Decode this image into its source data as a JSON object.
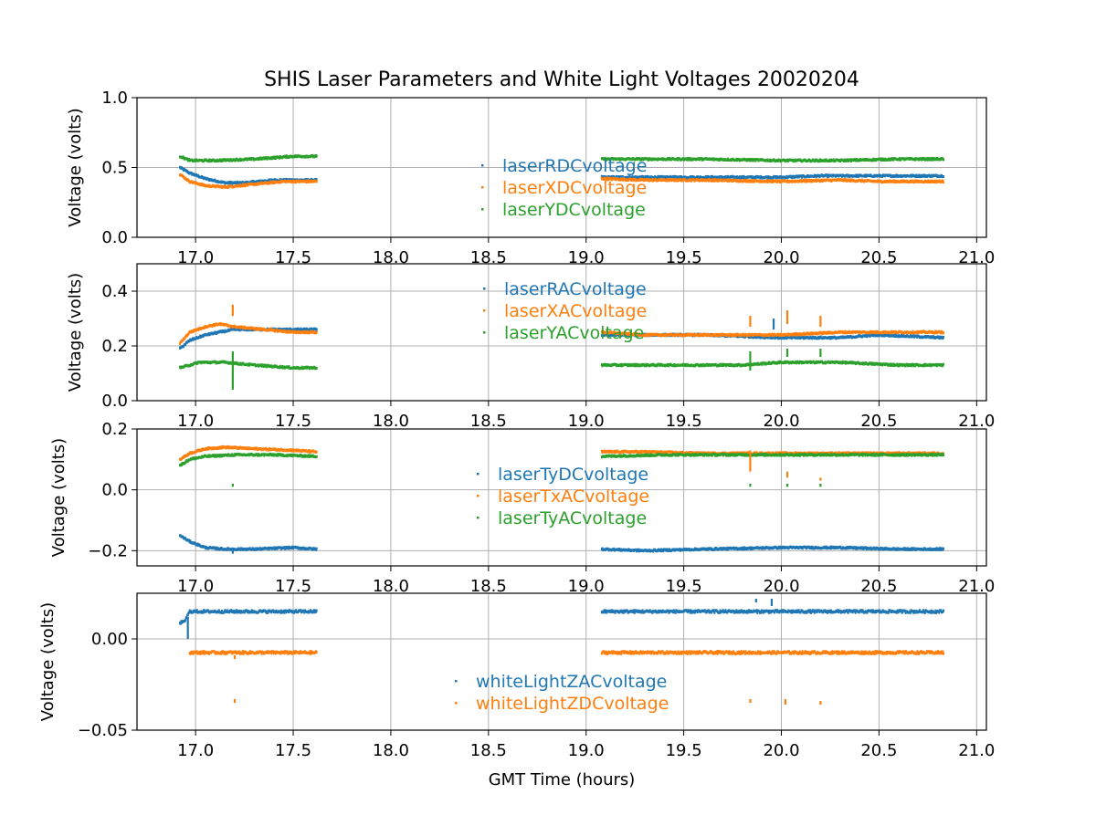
{
  "chart_data": {
    "type": "scatter",
    "title": "SHIS Laser Parameters and White Light Voltages 20020204",
    "xlabel": "GMT Time (hours)",
    "xlim": [
      16.7,
      21.05
    ],
    "x_ticks": [
      17.0,
      17.5,
      18.0,
      18.5,
      19.0,
      19.5,
      20.0,
      20.5,
      21.0
    ],
    "x_tick_labels": [
      "17.0",
      "17.5",
      "18.0",
      "18.5",
      "19.0",
      "19.5",
      "20.0",
      "20.5",
      "21.0"
    ],
    "segments": [
      [
        16.92,
        17.62
      ],
      [
        19.08,
        20.83
      ]
    ],
    "colors": {
      "blue": "#1f77b4",
      "orange": "#ff7f0e",
      "green": "#2ca02c"
    },
    "panels": [
      {
        "ylabel": "Voltage (volts)",
        "ylim": [
          0.0,
          1.0
        ],
        "y_ticks": [
          0.0,
          0.5,
          1.0
        ],
        "y_tick_labels": [
          "0.0",
          "0.5",
          "1.0"
        ],
        "series": [
          {
            "name": "laserRDCvoltage",
            "color": "#1f77b4",
            "points": [
              [
                16.92,
                0.5
              ],
              [
                16.97,
                0.46
              ],
              [
                17.05,
                0.42
              ],
              [
                17.15,
                0.39
              ],
              [
                17.25,
                0.39
              ],
              [
                17.4,
                0.41
              ],
              [
                17.62,
                0.41
              ],
              [
                19.08,
                0.43
              ],
              [
                19.3,
                0.43
              ],
              [
                19.6,
                0.43
              ],
              [
                20.0,
                0.43
              ],
              [
                20.2,
                0.44
              ],
              [
                20.5,
                0.44
              ],
              [
                20.83,
                0.44
              ]
            ]
          },
          {
            "name": "laserXDCvoltage",
            "color": "#ff7f0e",
            "points": [
              [
                16.92,
                0.45
              ],
              [
                16.97,
                0.4
              ],
              [
                17.05,
                0.37
              ],
              [
                17.15,
                0.36
              ],
              [
                17.3,
                0.38
              ],
              [
                17.45,
                0.4
              ],
              [
                17.62,
                0.4
              ],
              [
                19.08,
                0.42
              ],
              [
                19.3,
                0.41
              ],
              [
                19.6,
                0.41
              ],
              [
                20.0,
                0.4
              ],
              [
                20.3,
                0.41
              ],
              [
                20.5,
                0.4
              ],
              [
                20.83,
                0.4
              ]
            ]
          },
          {
            "name": "laserYDCvoltage",
            "color": "#2ca02c",
            "points": [
              [
                16.92,
                0.58
              ],
              [
                16.97,
                0.55
              ],
              [
                17.1,
                0.55
              ],
              [
                17.3,
                0.56
              ],
              [
                17.5,
                0.58
              ],
              [
                17.62,
                0.58
              ],
              [
                19.08,
                0.56
              ],
              [
                19.3,
                0.56
              ],
              [
                19.6,
                0.56
              ],
              [
                20.0,
                0.55
              ],
              [
                20.3,
                0.55
              ],
              [
                20.6,
                0.56
              ],
              [
                20.83,
                0.56
              ]
            ]
          }
        ],
        "outliers": []
      },
      {
        "ylabel": "Voltage (volts)",
        "ylim": [
          0.0,
          0.5
        ],
        "y_ticks": [
          0.0,
          0.2,
          0.4
        ],
        "y_tick_labels": [
          "0.0",
          "0.2",
          "0.4"
        ],
        "series": [
          {
            "name": "laserRACvoltage",
            "color": "#1f77b4",
            "points": [
              [
                16.92,
                0.19
              ],
              [
                16.97,
                0.22
              ],
              [
                17.05,
                0.24
              ],
              [
                17.12,
                0.25
              ],
              [
                17.2,
                0.26
              ],
              [
                17.35,
                0.26
              ],
              [
                17.5,
                0.26
              ],
              [
                17.62,
                0.26
              ],
              [
                19.08,
                0.24
              ],
              [
                19.3,
                0.24
              ],
              [
                19.6,
                0.24
              ],
              [
                20.0,
                0.23
              ],
              [
                20.3,
                0.23
              ],
              [
                20.5,
                0.24
              ],
              [
                20.83,
                0.23
              ]
            ]
          },
          {
            "name": "laserXACvoltage",
            "color": "#ff7f0e",
            "points": [
              [
                16.92,
                0.21
              ],
              [
                16.97,
                0.25
              ],
              [
                17.05,
                0.27
              ],
              [
                17.12,
                0.28
              ],
              [
                17.2,
                0.27
              ],
              [
                17.35,
                0.26
              ],
              [
                17.5,
                0.25
              ],
              [
                17.62,
                0.25
              ],
              [
                19.08,
                0.25
              ],
              [
                19.3,
                0.24
              ],
              [
                19.6,
                0.24
              ],
              [
                20.0,
                0.24
              ],
              [
                20.3,
                0.25
              ],
              [
                20.5,
                0.25
              ],
              [
                20.83,
                0.25
              ]
            ]
          },
          {
            "name": "laserYACvoltage",
            "color": "#2ca02c",
            "points": [
              [
                16.92,
                0.12
              ],
              [
                16.97,
                0.13
              ],
              [
                17.02,
                0.14
              ],
              [
                17.15,
                0.14
              ],
              [
                17.3,
                0.13
              ],
              [
                17.5,
                0.12
              ],
              [
                17.62,
                0.12
              ],
              [
                19.08,
                0.13
              ],
              [
                19.5,
                0.13
              ],
              [
                19.8,
                0.13
              ],
              [
                20.0,
                0.14
              ],
              [
                20.3,
                0.14
              ],
              [
                20.6,
                0.13
              ],
              [
                20.83,
                0.13
              ]
            ]
          }
        ],
        "outliers": [
          {
            "color": "#ff7f0e",
            "x": 17.19,
            "y": [
              0.31,
              0.35
            ]
          },
          {
            "color": "#2ca02c",
            "x": 17.19,
            "y": [
              0.04,
              0.18
            ]
          },
          {
            "color": "#ff7f0e",
            "x": 19.84,
            "y": [
              0.27,
              0.31
            ]
          },
          {
            "color": "#2ca02c",
            "x": 19.84,
            "y": [
              0.11,
              0.18
            ]
          },
          {
            "color": "#1f77b4",
            "x": 19.96,
            "y": [
              0.26,
              0.3
            ]
          },
          {
            "color": "#ff7f0e",
            "x": 20.03,
            "y": [
              0.28,
              0.33
            ]
          },
          {
            "color": "#2ca02c",
            "x": 20.03,
            "y": [
              0.16,
              0.19
            ]
          },
          {
            "color": "#ff7f0e",
            "x": 20.2,
            "y": [
              0.27,
              0.31
            ]
          },
          {
            "color": "#2ca02c",
            "x": 20.2,
            "y": [
              0.16,
              0.19
            ]
          }
        ]
      },
      {
        "ylabel": "Voltage (volts)",
        "ylim": [
          -0.25,
          0.2
        ],
        "y_ticks": [
          -0.2,
          0.0,
          0.2
        ],
        "y_tick_labels": [
          "−0.2",
          "0.0",
          "0.2"
        ],
        "series": [
          {
            "name": "laserTyDCvoltage",
            "color": "#1f77b4",
            "points": [
              [
                16.92,
                -0.15
              ],
              [
                16.97,
                -0.17
              ],
              [
                17.05,
                -0.19
              ],
              [
                17.15,
                -0.195
              ],
              [
                17.3,
                -0.195
              ],
              [
                17.5,
                -0.19
              ],
              [
                17.62,
                -0.195
              ],
              [
                19.08,
                -0.195
              ],
              [
                19.3,
                -0.2
              ],
              [
                19.6,
                -0.195
              ],
              [
                20.0,
                -0.19
              ],
              [
                20.3,
                -0.19
              ],
              [
                20.6,
                -0.195
              ],
              [
                20.83,
                -0.195
              ]
            ]
          },
          {
            "name": "laserTxACvoltage",
            "color": "#ff7f0e",
            "points": [
              [
                16.92,
                0.1
              ],
              [
                16.97,
                0.12
              ],
              [
                17.05,
                0.135
              ],
              [
                17.15,
                0.14
              ],
              [
                17.3,
                0.135
              ],
              [
                17.5,
                0.13
              ],
              [
                17.62,
                0.125
              ],
              [
                19.08,
                0.125
              ],
              [
                19.3,
                0.125
              ],
              [
                19.6,
                0.12
              ],
              [
                20.0,
                0.12
              ],
              [
                20.3,
                0.12
              ],
              [
                20.6,
                0.12
              ],
              [
                20.83,
                0.12
              ]
            ]
          },
          {
            "name": "laserTyACvoltage",
            "color": "#2ca02c",
            "points": [
              [
                16.92,
                0.08
              ],
              [
                16.97,
                0.1
              ],
              [
                17.05,
                0.11
              ],
              [
                17.2,
                0.115
              ],
              [
                17.4,
                0.115
              ],
              [
                17.62,
                0.11
              ],
              [
                19.08,
                0.11
              ],
              [
                19.4,
                0.115
              ],
              [
                19.8,
                0.115
              ],
              [
                20.2,
                0.115
              ],
              [
                20.6,
                0.115
              ],
              [
                20.83,
                0.115
              ]
            ]
          }
        ],
        "outliers": [
          {
            "color": "#2ca02c",
            "x": 17.19,
            "y": [
              0.01,
              0.02
            ]
          },
          {
            "color": "#1f77b4",
            "x": 17.19,
            "y": [
              -0.21,
              -0.2
            ]
          },
          {
            "color": "#ff7f0e",
            "x": 19.84,
            "y": [
              0.06,
              0.13
            ]
          },
          {
            "color": "#2ca02c",
            "x": 19.84,
            "y": [
              0.01,
              0.02
            ]
          },
          {
            "color": "#ff7f0e",
            "x": 20.03,
            "y": [
              0.04,
              0.06
            ]
          },
          {
            "color": "#2ca02c",
            "x": 20.03,
            "y": [
              0.01,
              0.02
            ]
          },
          {
            "color": "#ff7f0e",
            "x": 20.2,
            "y": [
              0.03,
              0.04
            ]
          },
          {
            "color": "#2ca02c",
            "x": 20.2,
            "y": [
              0.01,
              0.02
            ]
          }
        ]
      },
      {
        "ylabel": "Voltage (volts)",
        "ylim": [
          -0.05,
          0.025
        ],
        "y_ticks": [
          -0.05,
          0.0
        ],
        "y_tick_labels": [
          "−0.05",
          "0.00"
        ],
        "series": [
          {
            "name": "whiteLightZACvoltage",
            "color": "#1f77b4",
            "points": [
              [
                16.92,
                0.009
              ],
              [
                16.94,
                0.009
              ],
              [
                16.97,
                0.015
              ],
              [
                17.1,
                0.015
              ],
              [
                17.3,
                0.015
              ],
              [
                17.5,
                0.015
              ],
              [
                17.62,
                0.015
              ],
              [
                19.08,
                0.015
              ],
              [
                19.4,
                0.015
              ],
              [
                19.8,
                0.015
              ],
              [
                20.2,
                0.015
              ],
              [
                20.5,
                0.015
              ],
              [
                20.83,
                0.015
              ]
            ]
          },
          {
            "name": "whiteLightZDCvoltage",
            "color": "#ff7f0e",
            "points": [
              [
                16.97,
                -0.0075
              ],
              [
                17.2,
                -0.0075
              ],
              [
                17.4,
                -0.0075
              ],
              [
                17.62,
                -0.0075
              ],
              [
                19.08,
                -0.0075
              ],
              [
                19.5,
                -0.0075
              ],
              [
                19.9,
                -0.0075
              ],
              [
                20.3,
                -0.0075
              ],
              [
                20.83,
                -0.0075
              ]
            ]
          }
        ],
        "outliers": [
          {
            "color": "#1f77b4",
            "x": 16.96,
            "y": [
              0.0,
              0.012
            ]
          },
          {
            "color": "#ff7f0e",
            "x": 17.2,
            "y": [
              -0.035,
              -0.033
            ]
          },
          {
            "color": "#ff7f0e",
            "x": 17.2,
            "y": [
              -0.011,
              -0.009
            ]
          },
          {
            "color": "#ff7f0e",
            "x": 19.84,
            "y": [
              -0.035,
              -0.033
            ]
          },
          {
            "color": "#ff7f0e",
            "x": 20.02,
            "y": [
              -0.036,
              -0.033
            ]
          },
          {
            "color": "#ff7f0e",
            "x": 20.2,
            "y": [
              -0.036,
              -0.034
            ]
          },
          {
            "color": "#1f77b4",
            "x": 19.87,
            "y": [
              0.02,
              0.022
            ]
          },
          {
            "color": "#1f77b4",
            "x": 19.95,
            "y": [
              0.018,
              0.022
            ]
          }
        ]
      }
    ]
  }
}
